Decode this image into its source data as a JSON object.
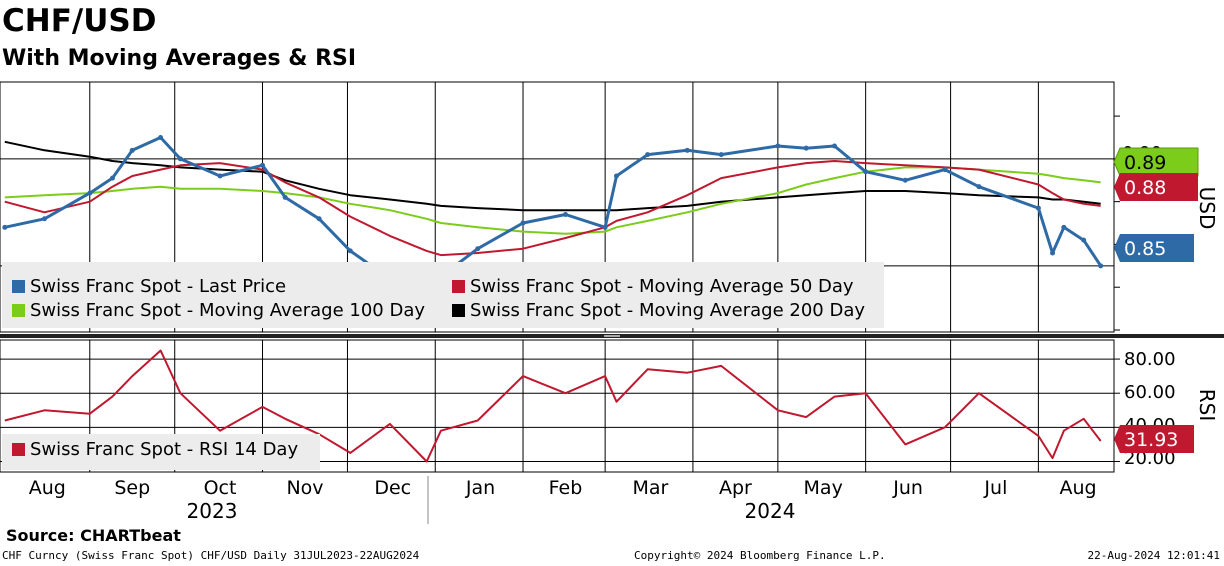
{
  "title": "CHF/USD",
  "subtitle": "With Moving Averages & RSI",
  "source": "Source: CHARTbeat",
  "footer": {
    "left": "CHF Curncy (Swiss Franc Spot) CHF/USD  Daily 31JUL2023-22AUG2024",
    "center": "Copyright© 2024 Bloomberg Finance L.P.",
    "right": "22-Aug-2024 12:01:41"
  },
  "colors": {
    "price": "#2e6aa6",
    "ma50": "#c0182f",
    "ma100": "#7ccc1a",
    "ma200": "#000000",
    "rsi": "#c0182f",
    "legend_bg": "#ececec"
  },
  "chart_data": [
    {
      "type": "line",
      "panel": "price",
      "ylabel": "USD",
      "x_labels": [
        "Aug",
        "Sep",
        "Oct",
        "Nov",
        "Dec",
        "Jan",
        "Feb",
        "Mar",
        "Apr",
        "May",
        "Jun",
        "Jul",
        "Aug"
      ],
      "year_labels": [
        "2023",
        "2024"
      ],
      "y_ticks": [
        "0.90"
      ],
      "ylim": [
        0.82,
        0.935
      ],
      "grid": true,
      "legend": [
        "Swiss Franc Spot - Last Price",
        "Swiss Franc Spot - Moving Average 50 Day",
        "Swiss Franc Spot - Moving Average 100 Day",
        "Swiss Franc Spot - Moving Average 200 Day"
      ],
      "right_tags": [
        "0.89",
        "0.88",
        "0.85"
      ],
      "x": [
        "2023-08-01",
        "2023-08-15",
        "2023-08-31",
        "2023-09-08",
        "2023-09-15",
        "2023-09-25",
        "2023-10-02",
        "2023-10-16",
        "2023-10-31",
        "2023-11-08",
        "2023-11-20",
        "2023-12-01",
        "2023-12-15",
        "2023-12-28",
        "2024-01-02",
        "2024-01-15",
        "2024-01-31",
        "2024-02-15",
        "2024-02-29",
        "2024-03-04",
        "2024-03-15",
        "2024-03-29",
        "2024-04-10",
        "2024-04-30",
        "2024-05-10",
        "2024-05-20",
        "2024-05-31",
        "2024-06-14",
        "2024-06-28",
        "2024-07-10",
        "2024-07-31",
        "2024-08-05",
        "2024-08-09",
        "2024-08-16",
        "2024-08-22"
      ],
      "series": [
        {
          "name": "Swiss Franc Spot - Last Price",
          "values": [
            0.868,
            0.872,
            0.884,
            0.891,
            0.904,
            0.91,
            0.9,
            0.892,
            0.897,
            0.882,
            0.872,
            0.857,
            0.844,
            0.832,
            0.845,
            0.858,
            0.87,
            0.874,
            0.868,
            0.892,
            0.902,
            0.904,
            0.902,
            0.906,
            0.905,
            0.906,
            0.894,
            0.89,
            0.895,
            0.887,
            0.877,
            0.856,
            0.868,
            0.862,
            0.85
          ]
        },
        {
          "name": "Swiss Franc Spot - Moving Average 50 Day",
          "values": [
            0.88,
            0.875,
            0.88,
            0.887,
            0.892,
            0.895,
            0.897,
            0.898,
            0.895,
            0.889,
            0.882,
            0.873,
            0.864,
            0.857,
            0.855,
            0.856,
            0.858,
            0.863,
            0.868,
            0.871,
            0.875,
            0.883,
            0.891,
            0.896,
            0.898,
            0.899,
            0.898,
            0.897,
            0.896,
            0.895,
            0.888,
            0.884,
            0.881,
            0.879,
            0.878
          ]
        },
        {
          "name": "Swiss Franc Spot - Moving Average 100 Day",
          "values": [
            0.882,
            0.883,
            0.884,
            0.885,
            0.886,
            0.887,
            0.886,
            0.886,
            0.885,
            0.884,
            0.882,
            0.879,
            0.876,
            0.872,
            0.87,
            0.868,
            0.866,
            0.865,
            0.866,
            0.868,
            0.871,
            0.875,
            0.879,
            0.884,
            0.888,
            0.891,
            0.894,
            0.896,
            0.896,
            0.895,
            0.893,
            0.892,
            0.891,
            0.89,
            0.889
          ]
        },
        {
          "name": "Swiss Franc Spot - Moving Average 200 Day",
          "values": [
            0.908,
            0.904,
            0.901,
            0.899,
            0.898,
            0.897,
            0.896,
            0.895,
            0.894,
            0.89,
            0.886,
            0.883,
            0.881,
            0.879,
            0.878,
            0.877,
            0.876,
            0.876,
            0.876,
            0.876,
            0.877,
            0.878,
            0.88,
            0.882,
            0.883,
            0.884,
            0.885,
            0.885,
            0.884,
            0.883,
            0.882,
            0.881,
            0.881,
            0.88,
            0.879
          ]
        }
      ]
    },
    {
      "type": "line",
      "panel": "rsi",
      "ylabel": "RSI",
      "y_ticks": [
        "80.00",
        "60.00",
        "40.00",
        "20.00"
      ],
      "ylim": [
        15,
        90
      ],
      "grid": true,
      "legend": [
        "Swiss Franc Spot - RSI 14 Day"
      ],
      "right_tags": [
        "31.93"
      ],
      "x": [
        "2023-08-01",
        "2023-08-15",
        "2023-08-31",
        "2023-09-08",
        "2023-09-15",
        "2023-09-25",
        "2023-10-02",
        "2023-10-16",
        "2023-10-31",
        "2023-11-08",
        "2023-11-20",
        "2023-12-01",
        "2023-12-15",
        "2023-12-28",
        "2024-01-02",
        "2024-01-15",
        "2024-01-31",
        "2024-02-15",
        "2024-02-29",
        "2024-03-04",
        "2024-03-15",
        "2024-03-29",
        "2024-04-10",
        "2024-04-30",
        "2024-05-10",
        "2024-05-20",
        "2024-05-31",
        "2024-06-14",
        "2024-06-28",
        "2024-07-10",
        "2024-07-31",
        "2024-08-05",
        "2024-08-09",
        "2024-08-16",
        "2024-08-22"
      ],
      "series": [
        {
          "name": "Swiss Franc Spot - RSI 14 Day",
          "values": [
            44,
            50,
            48,
            58,
            70,
            85,
            60,
            38,
            52,
            45,
            36,
            25,
            42,
            20,
            38,
            44,
            70,
            60,
            70,
            55,
            74,
            72,
            76,
            50,
            46,
            58,
            60,
            30,
            40,
            60,
            35,
            22,
            38,
            45,
            32
          ]
        }
      ]
    }
  ]
}
